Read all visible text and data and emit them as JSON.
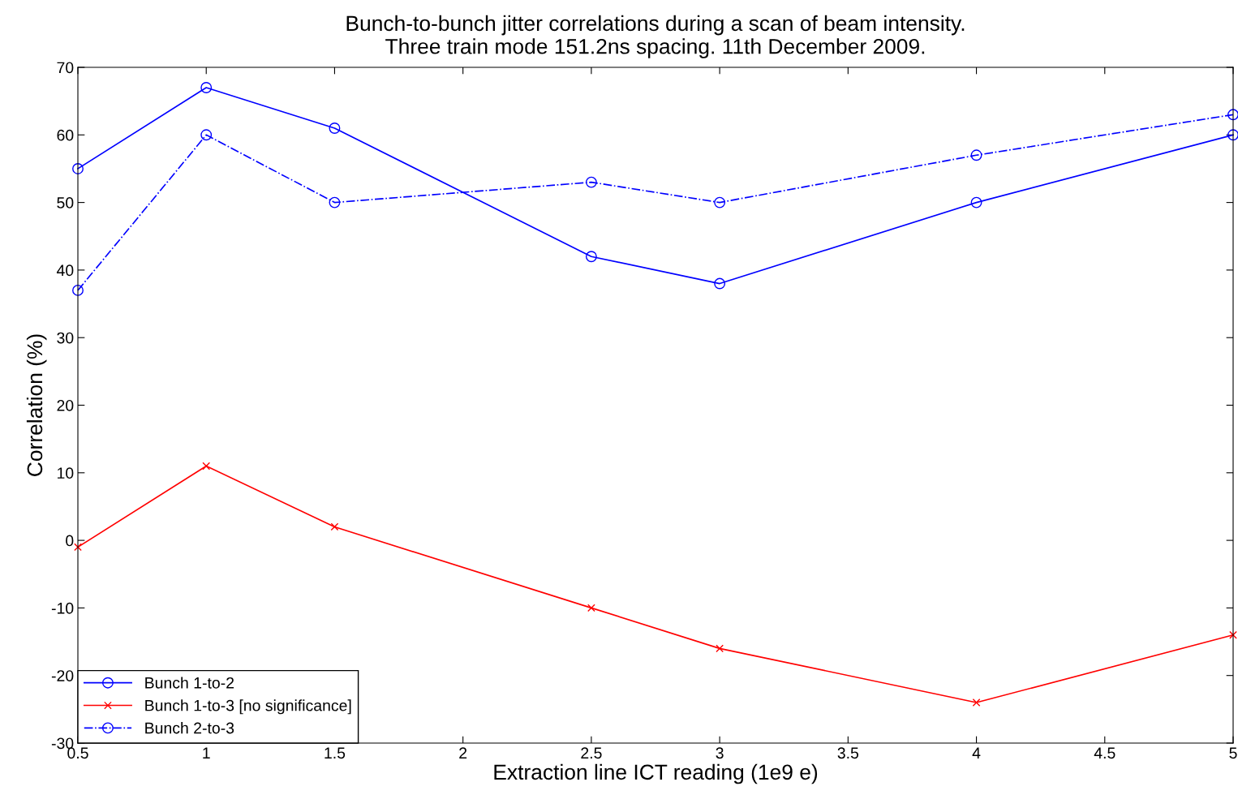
{
  "chart_data": {
    "type": "line",
    "title": "Bunch-to-bunch jitter correlations during a scan of beam intensity.\nThree train mode 151.2ns spacing. 11th December 2009.",
    "xlabel": "Extraction line ICT reading (1e9 e)",
    "ylabel": "Correlation (%)",
    "x": [
      0.5,
      1,
      1.5,
      2.5,
      3,
      4,
      5
    ],
    "series": [
      {
        "name": "Bunch 1-to-2",
        "color": "#0000ff",
        "marker": "circle",
        "line_style": "solid",
        "values": [
          55,
          67,
          61,
          42,
          38,
          50,
          60
        ]
      },
      {
        "name": "Bunch 1-to-3 [no significance]",
        "color": "#ff0000",
        "marker": "cross",
        "line_style": "solid",
        "values": [
          -1,
          11,
          2,
          -10,
          -16,
          -24,
          -14
        ]
      },
      {
        "name": "Bunch 2-to-3",
        "color": "#0000ff",
        "marker": "circle",
        "line_style": "dashdot",
        "values": [
          37,
          60,
          50,
          53,
          50,
          57,
          63
        ]
      }
    ],
    "xlim": [
      0.5,
      5
    ],
    "xticks": [
      0.5,
      1,
      1.5,
      2,
      2.5,
      3,
      3.5,
      4,
      4.5,
      5
    ],
    "ylim": [
      -30,
      70
    ],
    "yticks": [
      -30,
      -20,
      -10,
      0,
      10,
      20,
      30,
      40,
      50,
      60,
      70
    ],
    "grid": false,
    "legend": "bottom left"
  }
}
